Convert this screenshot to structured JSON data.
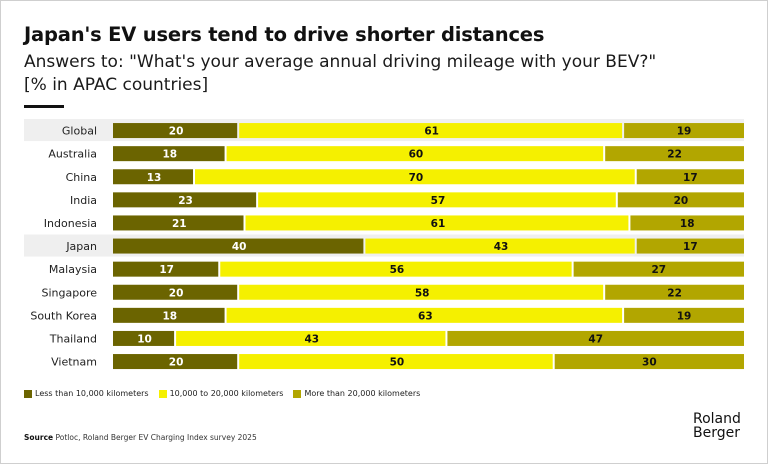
{
  "header": {
    "title": "Japan's EV users tend to drive shorter distances",
    "subtitle_line1": "Answers to: \"What's your average annual driving mileage with your BEV?\"",
    "subtitle_line2": "[% in APAC countries]"
  },
  "chart_data": {
    "type": "bar",
    "orientation": "horizontal",
    "stacked": true,
    "title": "Japan's EV users tend to drive shorter distances",
    "subtitle": "Answers to: \"What's your average annual driving mileage with your BEV?\" [% in APAC countries]",
    "xlabel": "",
    "ylabel": "",
    "xlim": [
      0,
      100
    ],
    "unit": "%",
    "grid": false,
    "legend_position": "bottom-left",
    "categories": [
      "Global",
      "Australia",
      "China",
      "India",
      "Indonesia",
      "Japan",
      "Malaysia",
      "Singapore",
      "South Korea",
      "Thailand",
      "Vietnam"
    ],
    "highlighted_categories": [
      "Global",
      "Japan"
    ],
    "series": [
      {
        "name": "Less than 10,000 kilometers",
        "color": "#6b6400",
        "label_color": "#ffffff",
        "values": [
          20,
          18,
          13,
          23,
          21,
          40,
          17,
          20,
          18,
          10,
          20
        ]
      },
      {
        "name": "10,000 to 20,000 kilometers",
        "color": "#f5f000",
        "label_color": "#111111",
        "values": [
          61,
          60,
          70,
          57,
          61,
          43,
          56,
          58,
          63,
          43,
          50
        ]
      },
      {
        "name": "More than 20,000 kilometers",
        "color": "#b2a600",
        "label_color": "#111111",
        "values": [
          19,
          22,
          17,
          20,
          18,
          17,
          27,
          22,
          19,
          47,
          30
        ]
      }
    ]
  },
  "legend": {
    "items": [
      {
        "label": "Less than 10,000 kilometers",
        "color": "#6b6400"
      },
      {
        "label": "10,000 to 20,000 kilometers",
        "color": "#f5f000"
      },
      {
        "label": "More than 20,000 kilometers",
        "color": "#b2a600"
      }
    ]
  },
  "footer": {
    "source_label": "Source",
    "source_text": "Potloc, Roland Berger EV Charging Index survey 2025",
    "logo_line1": "Roland",
    "logo_line2": "Berger"
  }
}
